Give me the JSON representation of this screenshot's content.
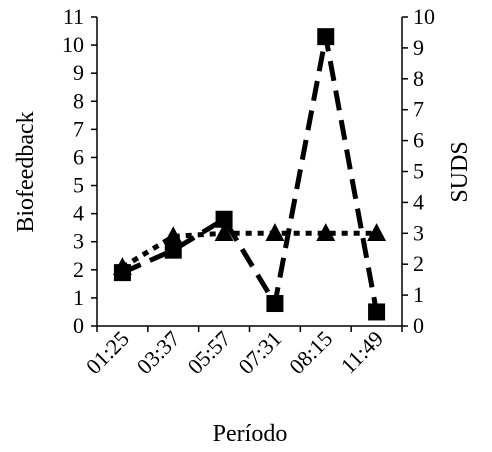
{
  "chart_data": {
    "type": "line",
    "categories": [
      "01:25",
      "03:37",
      "05:57",
      "07:31",
      "08:15",
      "11:49"
    ],
    "xlabel": "Período",
    "ylabel_left": "Biofeedback",
    "ylabel_right": "SUDS",
    "ylim_left": [
      0,
      11
    ],
    "ylim_right": [
      0,
      10
    ],
    "yticks_left": [
      "0",
      "1",
      "2",
      "3",
      "4",
      "5",
      "6",
      "7",
      "8",
      "9",
      "10",
      "11"
    ],
    "yticks_right": [
      "0",
      "1",
      "2",
      "3",
      "4",
      "5",
      "6",
      "7",
      "8",
      "9",
      "10"
    ],
    "series": [
      {
        "axis": "left",
        "marker": "square",
        "line_style": "long-dash",
        "values": [
          1.9,
          2.7,
          3.8,
          0.8,
          10.3,
          0.5
        ]
      },
      {
        "axis": "right",
        "marker": "triangle",
        "line_style": "dotted",
        "values": [
          1.9,
          2.9,
          3.0,
          3.0,
          3.0,
          3.0
        ]
      }
    ],
    "grid": false,
    "legend": "none"
  }
}
